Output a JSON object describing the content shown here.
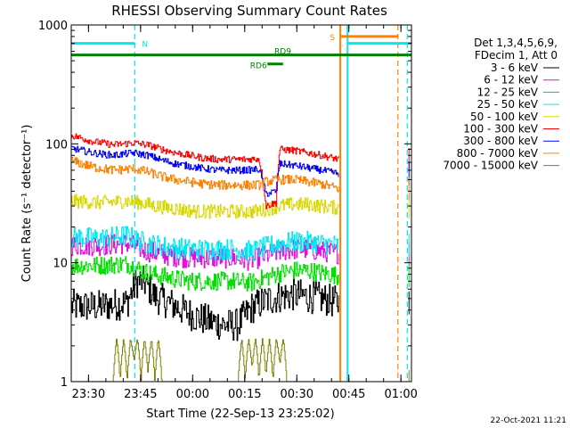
{
  "chart_data": {
    "type": "line",
    "title": "RHESSI Observing Summary Count Rates",
    "xlabel": "Start Time (22-Sep-13 23:25:02)",
    "ylabel": "Count Rate (s⁻¹ detector⁻¹)",
    "yscale": "log",
    "ylim": [
      1,
      1000
    ],
    "xlim_minutes": [
      0,
      98
    ],
    "x_ticks": [
      "23:30",
      "23:45",
      "00:00",
      "00:15",
      "00:30",
      "00:45",
      "01:00"
    ],
    "x_tick_minutes": [
      4.97,
      19.97,
      34.97,
      49.97,
      64.97,
      79.97,
      94.97
    ],
    "y_ticks": [
      "1",
      "10",
      "100",
      "1000"
    ],
    "y_tick_values": [
      1,
      10,
      100,
      1000
    ],
    "grid": false,
    "legend_position": "right",
    "legend_header": [
      "Det 1,3,4,5,6,9,",
      "FDecim 1, Att 0"
    ],
    "data_gap_minutes": [
      77.5,
      97.3
    ],
    "series": [
      {
        "name": "3 - 6 keV",
        "color": "#000000",
        "x": [
          0,
          8,
          16,
          19,
          21,
          24,
          28,
          32,
          36,
          40,
          44,
          48,
          52,
          56,
          60,
          64,
          68,
          72,
          77
        ],
        "y": [
          4.3,
          4.3,
          4.6,
          7.0,
          6.8,
          5.2,
          4.6,
          4.0,
          3.5,
          3.2,
          3.0,
          3.0,
          4.2,
          4.8,
          5.2,
          5.4,
          5.2,
          5.0,
          4.6
        ]
      },
      {
        "name": "6 - 12 keV",
        "color": "#e010e0",
        "x": [
          0,
          8,
          16,
          19,
          22,
          28,
          34,
          40,
          46,
          52,
          56,
          60,
          64,
          68,
          72,
          77
        ],
        "y": [
          14.0,
          14.0,
          14.5,
          13.5,
          12.5,
          11.5,
          11.0,
          11.0,
          11.0,
          10.5,
          11.5,
          12.5,
          13.0,
          13.0,
          12.5,
          12.0
        ]
      },
      {
        "name": "12 - 25 keV",
        "color": "#00e000",
        "x": [
          0,
          8,
          16,
          19,
          22,
          28,
          34,
          40,
          46,
          52,
          56,
          60,
          64,
          68,
          72,
          77
        ],
        "y": [
          9.5,
          9.5,
          9.8,
          9.0,
          8.2,
          7.5,
          7.0,
          7.0,
          7.0,
          6.8,
          7.5,
          8.2,
          8.6,
          8.6,
          8.2,
          7.8
        ]
      },
      {
        "name": "25 - 50 keV",
        "color": "#00e8f0",
        "x": [
          0,
          8,
          16,
          19,
          22,
          28,
          34,
          40,
          46,
          52,
          56,
          60,
          64,
          68,
          72,
          77
        ],
        "y": [
          16.5,
          16.0,
          17.0,
          15.5,
          14.5,
          13.5,
          13.0,
          13.0,
          13.0,
          12.5,
          13.5,
          14.5,
          15.0,
          15.0,
          14.5,
          14.0
        ]
      },
      {
        "name": "50 - 100 keV",
        "color": "#d8d800",
        "x": [
          0,
          8,
          16,
          20,
          24,
          28,
          32,
          36,
          40,
          44,
          48,
          52,
          56,
          60,
          64,
          68,
          72,
          77
        ],
        "y": [
          33,
          32,
          33,
          32,
          30,
          29,
          28,
          27,
          27,
          27,
          27,
          27,
          28,
          30,
          31,
          31,
          30,
          29
        ]
      },
      {
        "name": "100 - 300 keV",
        "color": "#ff0000",
        "x": [
          0,
          6,
          12,
          18,
          22,
          26,
          30,
          34,
          38,
          42,
          46,
          50,
          54,
          56,
          59,
          60,
          64,
          68,
          72,
          77
        ],
        "y": [
          118,
          105,
          98,
          102,
          98,
          90,
          84,
          80,
          76,
          74,
          74,
          74,
          75,
          30,
          32,
          90,
          88,
          84,
          80,
          74
        ]
      },
      {
        "name": "300 - 800 keV",
        "color": "#0000ff",
        "x": [
          0,
          6,
          12,
          18,
          22,
          26,
          30,
          34,
          38,
          42,
          46,
          50,
          54,
          56,
          59,
          60,
          64,
          68,
          72,
          77
        ],
        "y": [
          92,
          84,
          80,
          84,
          80,
          73,
          68,
          65,
          62,
          60,
          60,
          60,
          61,
          38,
          40,
          68,
          66,
          63,
          60,
          56
        ]
      },
      {
        "name": "800 - 7000 keV",
        "color": "#ff8000",
        "x": [
          0,
          6,
          12,
          18,
          22,
          26,
          30,
          34,
          38,
          42,
          46,
          50,
          54,
          56,
          60,
          64,
          68,
          72,
          77
        ],
        "y": [
          72,
          64,
          60,
          62,
          58,
          53,
          50,
          48,
          46,
          45,
          45,
          45,
          45,
          48,
          50,
          50,
          48,
          46,
          42
        ]
      },
      {
        "name": "7000 - 15000 keV",
        "color": "#808000",
        "x": [
          0,
          12,
          13,
          14,
          15,
          16,
          17,
          18,
          19,
          20,
          21,
          22,
          23,
          24,
          25,
          26,
          48,
          49,
          50,
          51,
          52,
          53,
          54,
          55,
          56,
          57,
          58,
          59,
          60,
          61,
          62,
          77
        ],
        "y": [
          1,
          1,
          2.3,
          1,
          2.3,
          1,
          2.3,
          1.5,
          2.3,
          1,
          2.3,
          1.2,
          2.3,
          1,
          2.3,
          1,
          1,
          2.3,
          1,
          2.3,
          1.3,
          2.3,
          1,
          2.3,
          1.1,
          2.3,
          1,
          2.3,
          1.4,
          2.3,
          1,
          1
        ]
      }
    ],
    "spacecraft_events": [
      {
        "label": "N",
        "color": "#00e8f0",
        "type": "night",
        "x_start": 0,
        "x_end": 18.3,
        "y_level": 700
      },
      {
        "label": "",
        "color": "#00e8f0",
        "type": "night",
        "x_start": 79.6,
        "x_end": 98,
        "y_level": 700
      },
      {
        "label": "S",
        "color": "#ff8000",
        "type": "saa",
        "x_start": 77.5,
        "x_end": 94.1,
        "y_level": 800
      },
      {
        "label": "RD9",
        "color": "#008000",
        "type": "attenuator",
        "x_start": 0,
        "x_end": 98,
        "y_level": 560
      },
      {
        "label": "RD6",
        "color": "#008000",
        "type": "attenuator",
        "x_start": 56.5,
        "x_end": 61.0,
        "y_level": 470
      }
    ],
    "event_markers": [
      {
        "color": "#00e8f0",
        "x": 18.3,
        "style": "dashed"
      },
      {
        "color": "#00e8f0",
        "x": 96.8,
        "style": "dashed"
      },
      {
        "color": "#ff8000",
        "x": 94.1,
        "style": "dashed"
      },
      {
        "color": "#ff8000",
        "x": 77.5,
        "style": "solid"
      },
      {
        "color": "#00e8f0",
        "x": 79.6,
        "style": "solid"
      }
    ]
  },
  "footer": {
    "date_stamp": "22-Oct-2021 11:21"
  }
}
